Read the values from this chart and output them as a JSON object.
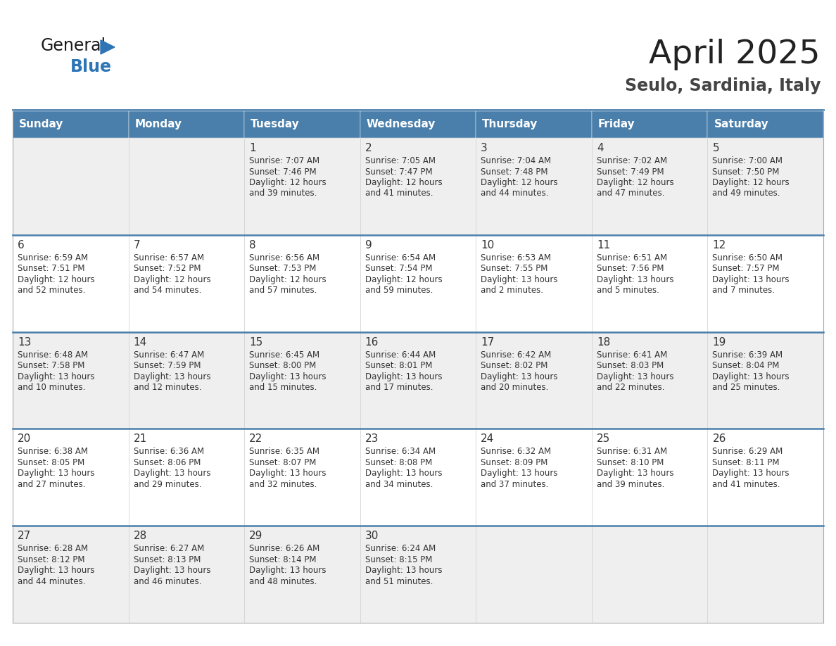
{
  "title": "April 2025",
  "subtitle": "Seulo, Sardinia, Italy",
  "header_bg_color": "#4a7fab",
  "header_text_color": "#ffffff",
  "day_names": [
    "Sunday",
    "Monday",
    "Tuesday",
    "Wednesday",
    "Thursday",
    "Friday",
    "Saturday"
  ],
  "odd_row_bg": "#efefef",
  "even_row_bg": "#ffffff",
  "cell_text_color": "#333333",
  "title_color": "#222222",
  "subtitle_color": "#444444",
  "logo_general_color": "#1a1a1a",
  "logo_blue_color": "#2e75b6",
  "row_divider_color": "#4a7fab",
  "days": [
    {
      "day": 1,
      "col": 2,
      "row": 0,
      "sunrise": "7:07 AM",
      "sunset": "7:46 PM",
      "daylight_h": "12 hours",
      "daylight_m": "and 39 minutes."
    },
    {
      "day": 2,
      "col": 3,
      "row": 0,
      "sunrise": "7:05 AM",
      "sunset": "7:47 PM",
      "daylight_h": "12 hours",
      "daylight_m": "and 41 minutes."
    },
    {
      "day": 3,
      "col": 4,
      "row": 0,
      "sunrise": "7:04 AM",
      "sunset": "7:48 PM",
      "daylight_h": "12 hours",
      "daylight_m": "and 44 minutes."
    },
    {
      "day": 4,
      "col": 5,
      "row": 0,
      "sunrise": "7:02 AM",
      "sunset": "7:49 PM",
      "daylight_h": "12 hours",
      "daylight_m": "and 47 minutes."
    },
    {
      "day": 5,
      "col": 6,
      "row": 0,
      "sunrise": "7:00 AM",
      "sunset": "7:50 PM",
      "daylight_h": "12 hours",
      "daylight_m": "and 49 minutes."
    },
    {
      "day": 6,
      "col": 0,
      "row": 1,
      "sunrise": "6:59 AM",
      "sunset": "7:51 PM",
      "daylight_h": "12 hours",
      "daylight_m": "and 52 minutes."
    },
    {
      "day": 7,
      "col": 1,
      "row": 1,
      "sunrise": "6:57 AM",
      "sunset": "7:52 PM",
      "daylight_h": "12 hours",
      "daylight_m": "and 54 minutes."
    },
    {
      "day": 8,
      "col": 2,
      "row": 1,
      "sunrise": "6:56 AM",
      "sunset": "7:53 PM",
      "daylight_h": "12 hours",
      "daylight_m": "and 57 minutes."
    },
    {
      "day": 9,
      "col": 3,
      "row": 1,
      "sunrise": "6:54 AM",
      "sunset": "7:54 PM",
      "daylight_h": "12 hours",
      "daylight_m": "and 59 minutes."
    },
    {
      "day": 10,
      "col": 4,
      "row": 1,
      "sunrise": "6:53 AM",
      "sunset": "7:55 PM",
      "daylight_h": "13 hours",
      "daylight_m": "and 2 minutes."
    },
    {
      "day": 11,
      "col": 5,
      "row": 1,
      "sunrise": "6:51 AM",
      "sunset": "7:56 PM",
      "daylight_h": "13 hours",
      "daylight_m": "and 5 minutes."
    },
    {
      "day": 12,
      "col": 6,
      "row": 1,
      "sunrise": "6:50 AM",
      "sunset": "7:57 PM",
      "daylight_h": "13 hours",
      "daylight_m": "and 7 minutes."
    },
    {
      "day": 13,
      "col": 0,
      "row": 2,
      "sunrise": "6:48 AM",
      "sunset": "7:58 PM",
      "daylight_h": "13 hours",
      "daylight_m": "and 10 minutes."
    },
    {
      "day": 14,
      "col": 1,
      "row": 2,
      "sunrise": "6:47 AM",
      "sunset": "7:59 PM",
      "daylight_h": "13 hours",
      "daylight_m": "and 12 minutes."
    },
    {
      "day": 15,
      "col": 2,
      "row": 2,
      "sunrise": "6:45 AM",
      "sunset": "8:00 PM",
      "daylight_h": "13 hours",
      "daylight_m": "and 15 minutes."
    },
    {
      "day": 16,
      "col": 3,
      "row": 2,
      "sunrise": "6:44 AM",
      "sunset": "8:01 PM",
      "daylight_h": "13 hours",
      "daylight_m": "and 17 minutes."
    },
    {
      "day": 17,
      "col": 4,
      "row": 2,
      "sunrise": "6:42 AM",
      "sunset": "8:02 PM",
      "daylight_h": "13 hours",
      "daylight_m": "and 20 minutes."
    },
    {
      "day": 18,
      "col": 5,
      "row": 2,
      "sunrise": "6:41 AM",
      "sunset": "8:03 PM",
      "daylight_h": "13 hours",
      "daylight_m": "and 22 minutes."
    },
    {
      "day": 19,
      "col": 6,
      "row": 2,
      "sunrise": "6:39 AM",
      "sunset": "8:04 PM",
      "daylight_h": "13 hours",
      "daylight_m": "and 25 minutes."
    },
    {
      "day": 20,
      "col": 0,
      "row": 3,
      "sunrise": "6:38 AM",
      "sunset": "8:05 PM",
      "daylight_h": "13 hours",
      "daylight_m": "and 27 minutes."
    },
    {
      "day": 21,
      "col": 1,
      "row": 3,
      "sunrise": "6:36 AM",
      "sunset": "8:06 PM",
      "daylight_h": "13 hours",
      "daylight_m": "and 29 minutes."
    },
    {
      "day": 22,
      "col": 2,
      "row": 3,
      "sunrise": "6:35 AM",
      "sunset": "8:07 PM",
      "daylight_h": "13 hours",
      "daylight_m": "and 32 minutes."
    },
    {
      "day": 23,
      "col": 3,
      "row": 3,
      "sunrise": "6:34 AM",
      "sunset": "8:08 PM",
      "daylight_h": "13 hours",
      "daylight_m": "and 34 minutes."
    },
    {
      "day": 24,
      "col": 4,
      "row": 3,
      "sunrise": "6:32 AM",
      "sunset": "8:09 PM",
      "daylight_h": "13 hours",
      "daylight_m": "and 37 minutes."
    },
    {
      "day": 25,
      "col": 5,
      "row": 3,
      "sunrise": "6:31 AM",
      "sunset": "8:10 PM",
      "daylight_h": "13 hours",
      "daylight_m": "and 39 minutes."
    },
    {
      "day": 26,
      "col": 6,
      "row": 3,
      "sunrise": "6:29 AM",
      "sunset": "8:11 PM",
      "daylight_h": "13 hours",
      "daylight_m": "and 41 minutes."
    },
    {
      "day": 27,
      "col": 0,
      "row": 4,
      "sunrise": "6:28 AM",
      "sunset": "8:12 PM",
      "daylight_h": "13 hours",
      "daylight_m": "and 44 minutes."
    },
    {
      "day": 28,
      "col": 1,
      "row": 4,
      "sunrise": "6:27 AM",
      "sunset": "8:13 PM",
      "daylight_h": "13 hours",
      "daylight_m": "and 46 minutes."
    },
    {
      "day": 29,
      "col": 2,
      "row": 4,
      "sunrise": "6:26 AM",
      "sunset": "8:14 PM",
      "daylight_h": "13 hours",
      "daylight_m": "and 48 minutes."
    },
    {
      "day": 30,
      "col": 3,
      "row": 4,
      "sunrise": "6:24 AM",
      "sunset": "8:15 PM",
      "daylight_h": "13 hours",
      "daylight_m": "and 51 minutes."
    }
  ]
}
